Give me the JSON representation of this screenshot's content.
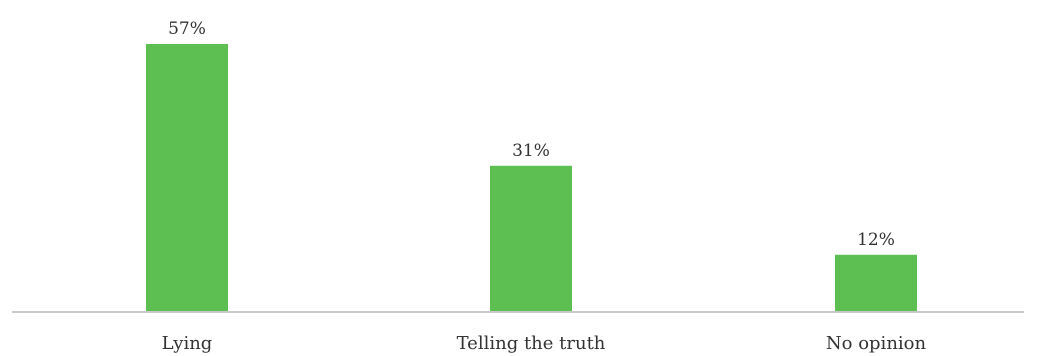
{
  "chart_data": {
    "type": "bar",
    "categories": [
      "Lying",
      "Telling the truth",
      "No opinion"
    ],
    "values": [
      57,
      31,
      12
    ],
    "value_labels": [
      "57%",
      "31%",
      "12%"
    ],
    "unit": "%",
    "title": "",
    "xlabel": "",
    "ylabel": "",
    "ylim": [
      0,
      57
    ],
    "grid": false,
    "legend": "none",
    "bar_color": "#5dbf52",
    "axis_color": "#c8c8c8"
  }
}
